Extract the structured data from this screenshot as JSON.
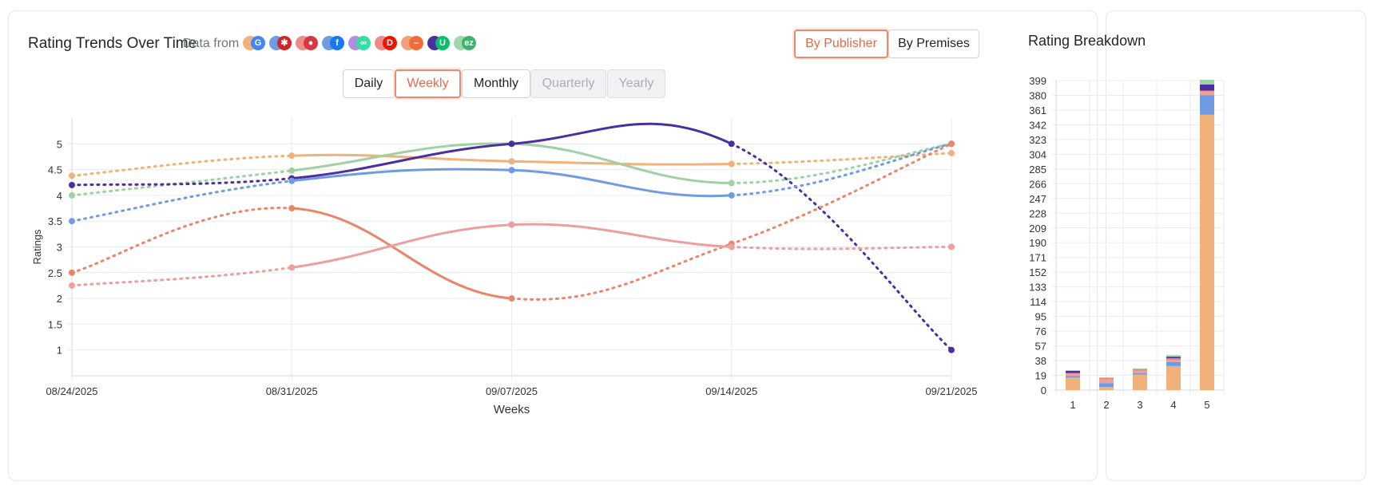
{
  "trend": {
    "title": "Rating Trends Over Time",
    "data_from_label": "Data from",
    "publishers": [
      {
        "name": "google-icon",
        "color": "#f0b27a",
        "glyph": "G",
        "glyph_color": "#4285f4"
      },
      {
        "name": "yelp-icon",
        "color": "#6f9be3",
        "glyph": "✱",
        "glyph_color": "#d32323"
      },
      {
        "name": "opentable-icon",
        "color": "#ec8c86",
        "glyph": "●",
        "glyph_color": "#da3743"
      },
      {
        "name": "facebook-icon",
        "color": "#6f9be3",
        "glyph": "f",
        "glyph_color": "#1877f2"
      },
      {
        "name": "tripadvisor-icon",
        "color": "#b08ee0",
        "glyph": "∞",
        "glyph_color": "#34e0a1"
      },
      {
        "name": "doordash-icon",
        "color": "#ec8c86",
        "glyph": "D",
        "glyph_color": "#eb1700"
      },
      {
        "name": "grubhub-icon",
        "color": "#f0a07a",
        "glyph": "–",
        "glyph_color": "#f26b3a"
      },
      {
        "name": "ubereats-icon",
        "color": "#4b2fa0",
        "glyph": "U",
        "glyph_color": "#06c167"
      },
      {
        "name": "ezcater-icon",
        "color": "#9fd7a8",
        "glyph": "ez",
        "glyph_color": "#3db46d"
      }
    ],
    "group_buttons": [
      {
        "label": "By Publisher",
        "active": true
      },
      {
        "label": "By Premises",
        "active": false
      }
    ],
    "period_buttons": [
      {
        "label": "Daily",
        "state": "normal"
      },
      {
        "label": "Weekly",
        "state": "active"
      },
      {
        "label": "Monthly",
        "state": "normal"
      },
      {
        "label": "Quarterly",
        "state": "disabled"
      },
      {
        "label": "Yearly",
        "state": "disabled"
      }
    ]
  },
  "breakdown": {
    "title": "Rating Breakdown"
  },
  "chart_data": [
    {
      "type": "line",
      "title": "",
      "xlabel": "Weeks",
      "ylabel": "Ratings",
      "x": [
        "08/24/2025",
        "08/31/2025",
        "09/07/2025",
        "09/14/2025",
        "09/21/2025"
      ],
      "ylim": [
        0.5,
        5.5
      ],
      "yticks": [
        "1",
        "1.5",
        "2",
        "2.5",
        "3",
        "3.5",
        "4",
        "4.5",
        "5"
      ],
      "grid": true,
      "series": [
        {
          "color": "#f0b27a",
          "values": [
            4.38,
            4.77,
            4.66,
            4.61,
            4.82
          ],
          "dashed_segments": [
            0,
            3
          ]
        },
        {
          "color": "#9fd1a3",
          "values": [
            4.0,
            4.48,
            5.0,
            4.24,
            5.0
          ],
          "dashed_segments": [
            0,
            3
          ]
        },
        {
          "color": "#4b2fa0",
          "values": [
            4.2,
            4.33,
            5.0,
            5.0,
            1.0
          ],
          "dashed_segments": [
            0,
            3
          ]
        },
        {
          "color": "#6f9be3",
          "values": [
            3.5,
            4.28,
            4.49,
            4.0,
            5.0
          ],
          "dashed_segments": [
            0,
            3
          ]
        },
        {
          "color": "#e8866b",
          "values": [
            2.5,
            3.75,
            2.0,
            3.06,
            5.0
          ],
          "dashed_segments": [
            0,
            2,
            3
          ]
        },
        {
          "color": "#ec9fa0",
          "values": [
            2.25,
            2.6,
            3.43,
            3.0,
            3.0
          ],
          "dashed_segments": [
            0,
            3
          ]
        }
      ]
    },
    {
      "type": "bar",
      "stacked": true,
      "title": "",
      "categories": [
        "1",
        "2",
        "3",
        "4",
        "5"
      ],
      "ylim": [
        0,
        399
      ],
      "yticks": [
        "0",
        "19",
        "38",
        "57",
        "76",
        "95",
        "114",
        "133",
        "152",
        "171",
        "190",
        "209",
        "228",
        "247",
        "266",
        "285",
        "304",
        "323",
        "342",
        "361",
        "380",
        "399"
      ],
      "grid": true,
      "series": [
        {
          "color": "#f0b27a",
          "values": [
            16,
            4,
            20,
            31,
            355
          ]
        },
        {
          "color": "#6f9be3",
          "values": [
            2,
            5,
            2,
            5,
            25
          ]
        },
        {
          "color": "#ec9fa0",
          "values": [
            3,
            5,
            3,
            3,
            5
          ]
        },
        {
          "color": "#e8866b",
          "values": [
            1,
            2,
            2,
            2,
            1
          ]
        },
        {
          "color": "#4b2fa0",
          "values": [
            3,
            0,
            0,
            2,
            8
          ]
        },
        {
          "color": "#9fd1a3",
          "values": [
            0,
            0,
            1,
            2,
            6
          ]
        }
      ]
    }
  ]
}
